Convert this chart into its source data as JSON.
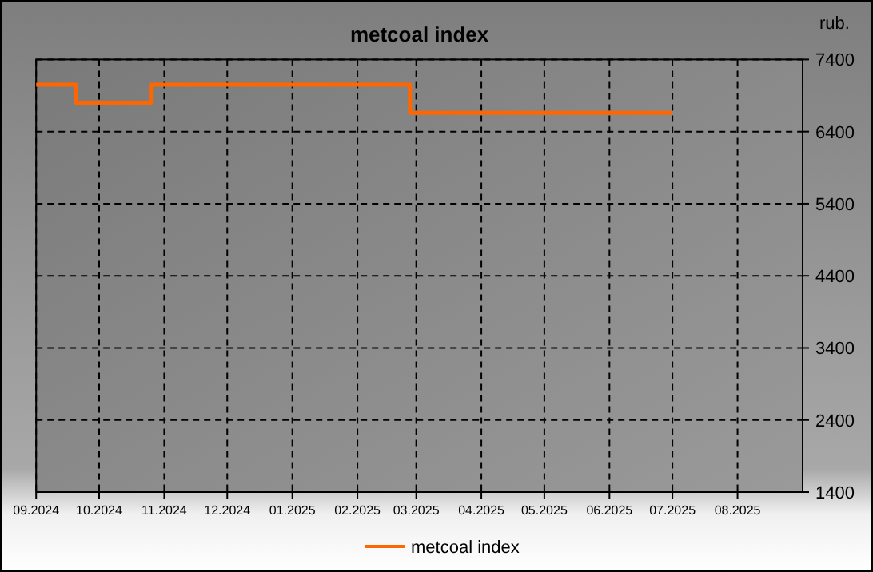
{
  "chart_data": {
    "type": "step",
    "title": "metcoal index",
    "ylabel": "rub.",
    "series": [
      {
        "name": "metcoal index",
        "color": "#ff6600",
        "x": [
          "2024-09-01",
          "2024-09-20",
          "2024-10-26",
          "2025-02-26",
          "2025-07-01"
        ],
        "values": [
          7050,
          6800,
          7050,
          6660,
          6660
        ]
      }
    ],
    "xlim": [
      "2024-09-01",
      "2025-09-01"
    ],
    "xticks": [
      {
        "value": "2024-09-01",
        "label": "09.2024"
      },
      {
        "value": "2024-10-01",
        "label": "10.2024"
      },
      {
        "value": "2024-11-01",
        "label": "11.2024"
      },
      {
        "value": "2024-12-01",
        "label": "12.2024"
      },
      {
        "value": "2025-01-01",
        "label": "01.2025"
      },
      {
        "value": "2025-02-01",
        "label": "02.2025"
      },
      {
        "value": "2025-03-01",
        "label": "03.2025"
      },
      {
        "value": "2025-04-01",
        "label": "04.2025"
      },
      {
        "value": "2025-05-01",
        "label": "05.2025"
      },
      {
        "value": "2025-06-01",
        "label": "06.2025"
      },
      {
        "value": "2025-07-01",
        "label": "07.2025"
      },
      {
        "value": "2025-08-01",
        "label": "08.2025"
      }
    ],
    "ylim": [
      1400,
      7400
    ],
    "yticks": [
      1400,
      2400,
      3400,
      4400,
      5400,
      6400,
      7400
    ],
    "grid": true,
    "legend": "bottom",
    "line_style": "solid",
    "marker": "none"
  }
}
